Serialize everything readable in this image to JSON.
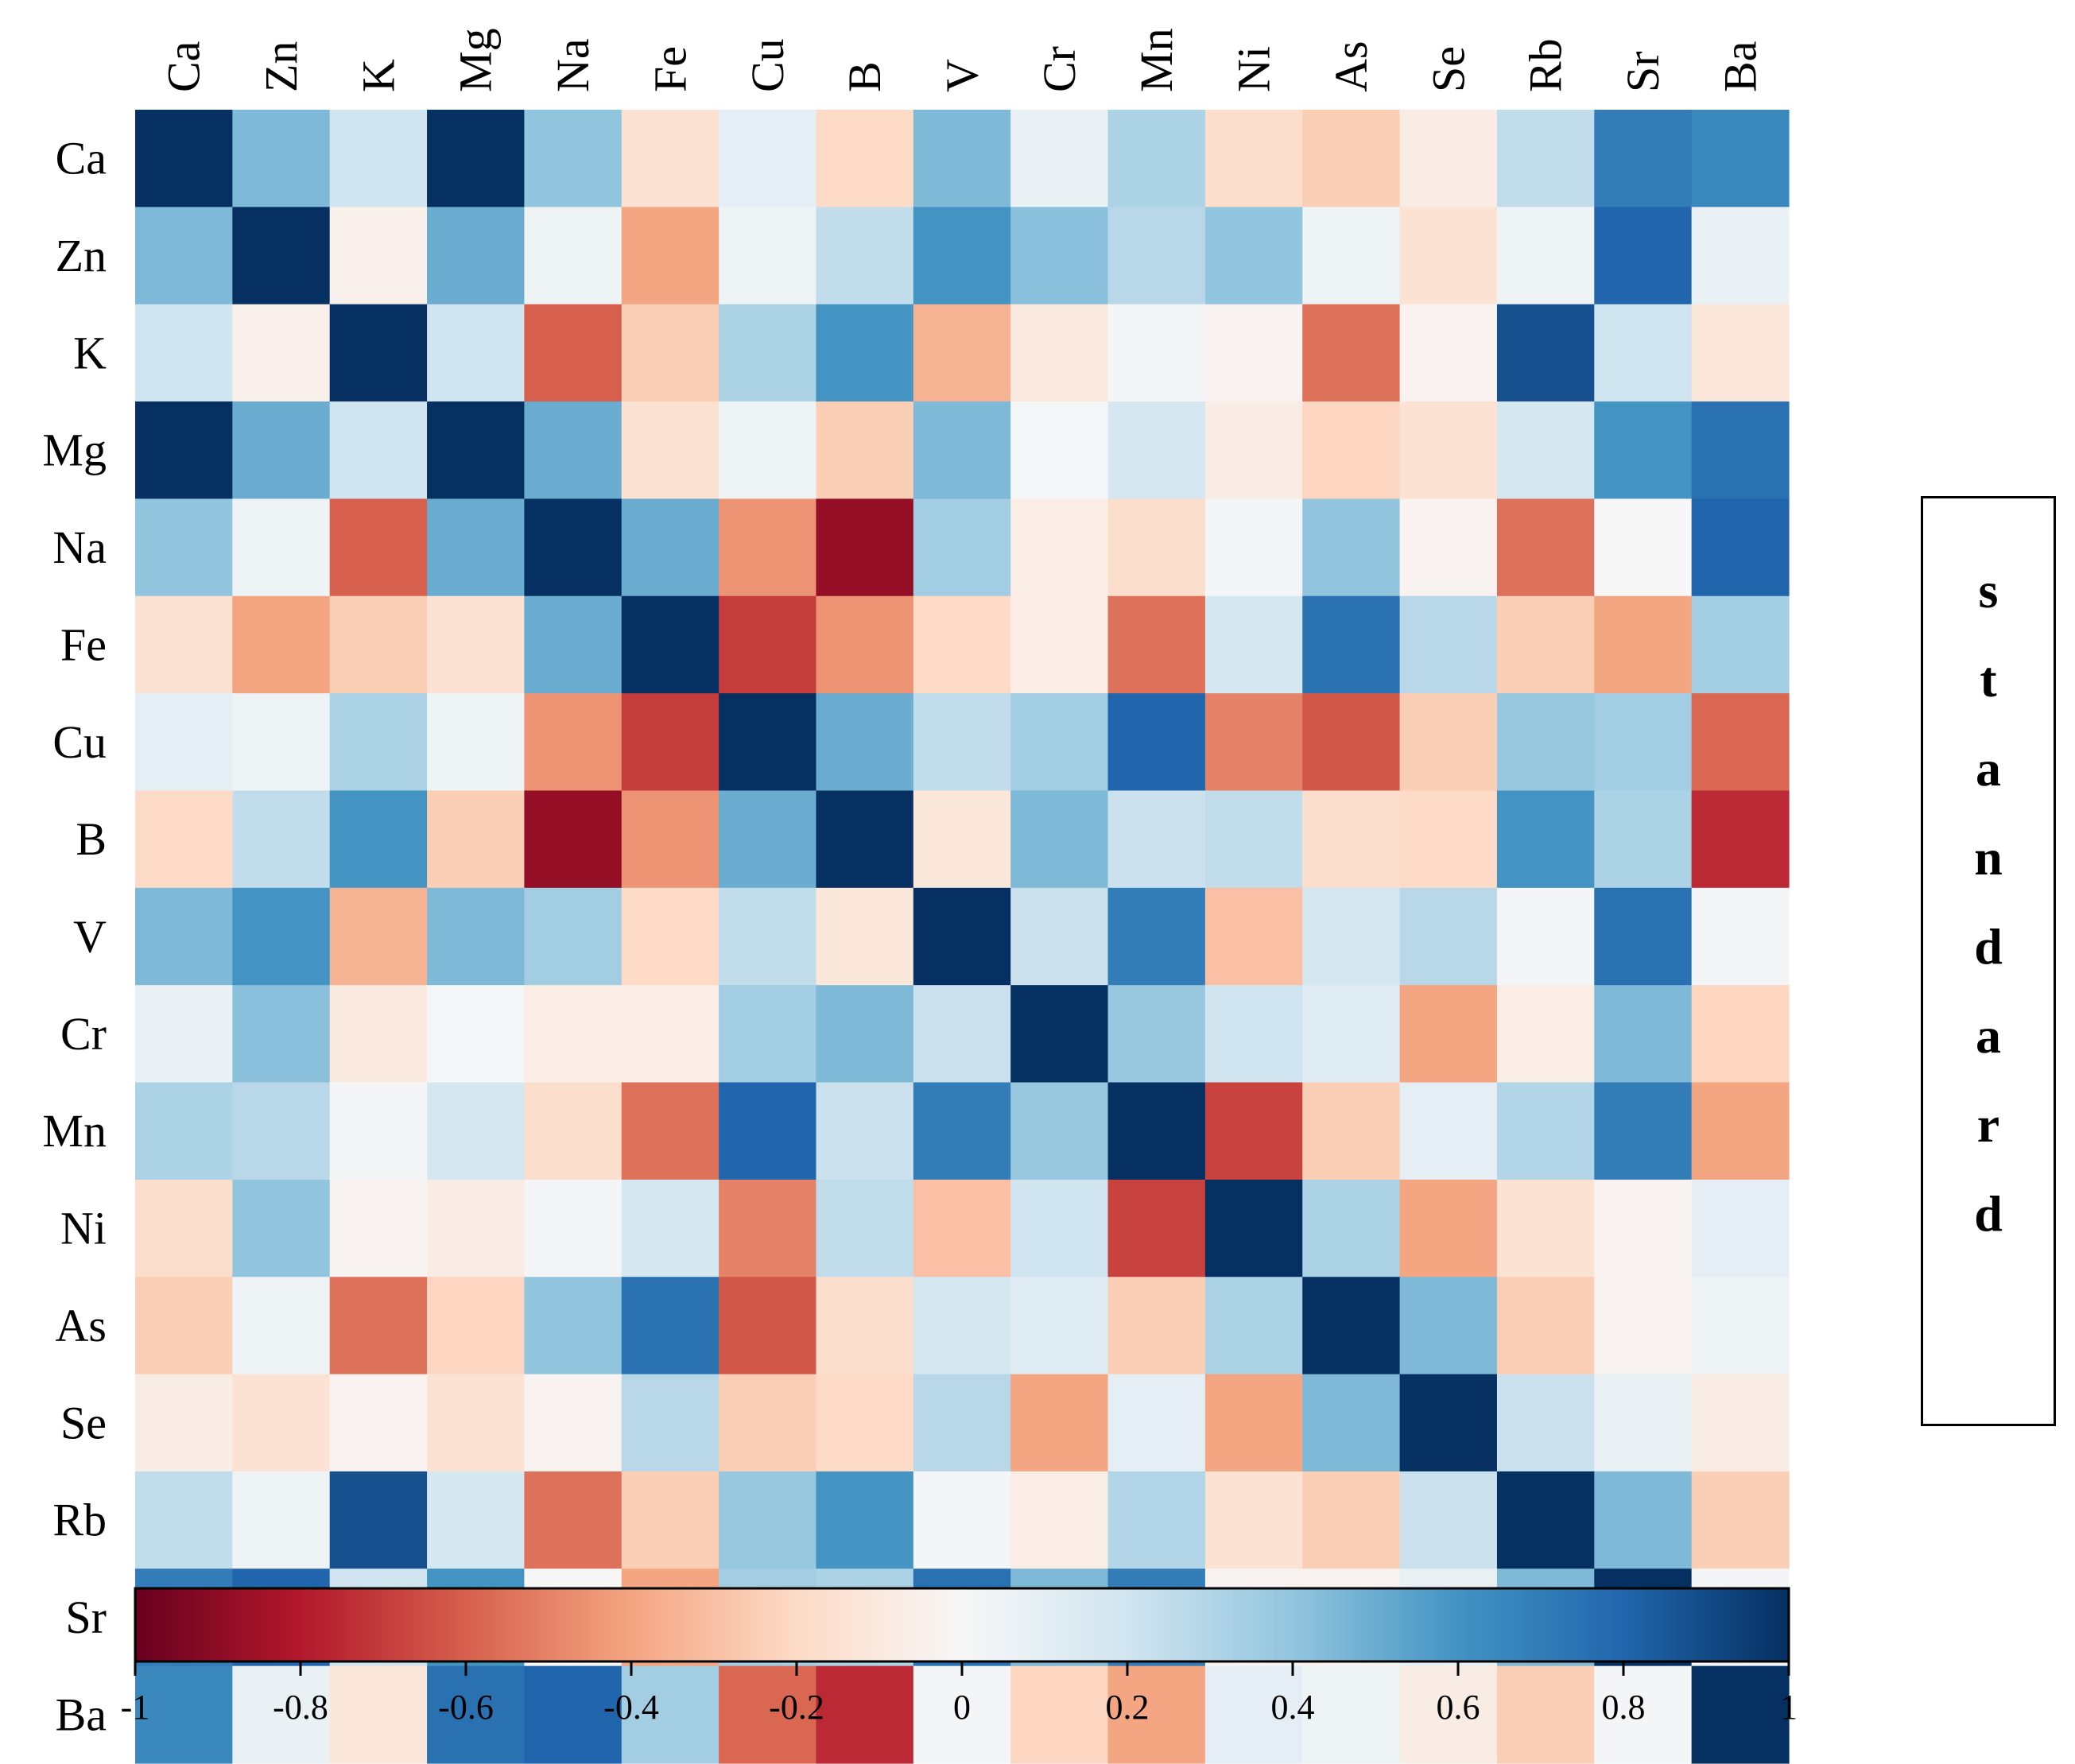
{
  "chart_data": {
    "type": "heatmap",
    "title": "",
    "row_labels": [
      "Ca",
      "Zn",
      "K",
      "Mg",
      "Na",
      "Fe",
      "Cu",
      "B",
      "V",
      "Cr",
      "Mn",
      "Ni",
      "As",
      "Se",
      "Rb",
      "Sr",
      "Ba"
    ],
    "col_labels": [
      "Ca",
      "Zn",
      "K",
      "Mg",
      "Na",
      "Fe",
      "Cu",
      "B",
      "V",
      "Cr",
      "Mn",
      "Ni",
      "As",
      "Se",
      "Rb",
      "Sr",
      "Ba"
    ],
    "values": [
      [
        1.0,
        0.45,
        0.2,
        1.0,
        0.4,
        -0.15,
        0.1,
        -0.2,
        0.45,
        0.07,
        0.32,
        -0.18,
        -0.25,
        -0.08,
        0.25,
        0.7,
        0.65
      ],
      [
        0.45,
        1.0,
        -0.05,
        0.5,
        0.05,
        -0.4,
        0.05,
        0.25,
        0.6,
        0.42,
        0.28,
        0.4,
        0.05,
        -0.15,
        0.05,
        0.8,
        0.07
      ],
      [
        0.2,
        -0.05,
        1.0,
        0.2,
        -0.6,
        -0.25,
        0.32,
        0.6,
        -0.35,
        -0.1,
        0.02,
        -0.03,
        -0.55,
        -0.03,
        0.88,
        0.2,
        -0.12
      ],
      [
        1.0,
        0.5,
        0.2,
        1.0,
        0.5,
        -0.15,
        0.05,
        -0.25,
        0.45,
        0.01,
        0.18,
        -0.08,
        -0.22,
        -0.15,
        0.18,
        0.6,
        0.75
      ],
      [
        0.4,
        0.05,
        -0.6,
        0.5,
        1.0,
        0.5,
        -0.45,
        -0.88,
        0.35,
        -0.07,
        -0.18,
        0.02,
        0.4,
        -0.03,
        -0.55,
        0.0,
        0.8
      ],
      [
        -0.15,
        -0.4,
        -0.25,
        -0.15,
        0.5,
        1.0,
        -0.7,
        -0.45,
        -0.2,
        -0.07,
        -0.55,
        0.18,
        0.75,
        0.28,
        -0.25,
        -0.4,
        0.35
      ],
      [
        0.1,
        0.05,
        0.32,
        0.05,
        -0.45,
        -0.7,
        1.0,
        0.5,
        0.25,
        0.35,
        0.8,
        -0.5,
        -0.62,
        -0.25,
        0.38,
        0.35,
        -0.58
      ],
      [
        -0.2,
        0.25,
        0.6,
        -0.25,
        -0.88,
        -0.45,
        0.5,
        1.0,
        -0.12,
        0.45,
        0.22,
        0.25,
        -0.18,
        -0.2,
        0.6,
        0.32,
        -0.75
      ],
      [
        0.45,
        0.6,
        -0.35,
        0.45,
        0.35,
        -0.2,
        0.25,
        -0.12,
        1.0,
        0.22,
        0.7,
        -0.3,
        0.18,
        0.28,
        0.02,
        0.75,
        0.02
      ],
      [
        0.07,
        0.42,
        -0.1,
        0.01,
        -0.07,
        -0.07,
        0.35,
        0.45,
        0.22,
        1.0,
        0.38,
        0.2,
        0.12,
        -0.4,
        -0.07,
        0.45,
        -0.22
      ],
      [
        0.32,
        0.28,
        0.02,
        0.18,
        -0.18,
        -0.55,
        0.8,
        0.22,
        0.7,
        0.38,
        1.0,
        -0.68,
        -0.25,
        0.1,
        0.3,
        0.7,
        -0.4
      ],
      [
        -0.18,
        0.4,
        -0.03,
        -0.08,
        0.02,
        0.18,
        -0.5,
        0.25,
        -0.3,
        0.2,
        -0.68,
        1.0,
        0.32,
        -0.4,
        -0.15,
        -0.03,
        0.1
      ],
      [
        -0.25,
        0.05,
        -0.55,
        -0.22,
        0.4,
        0.75,
        -0.62,
        -0.18,
        0.18,
        0.12,
        -0.25,
        0.32,
        1.0,
        0.45,
        -0.25,
        -0.03,
        0.05
      ],
      [
        -0.08,
        -0.15,
        -0.03,
        -0.15,
        -0.03,
        0.28,
        -0.25,
        -0.2,
        0.28,
        -0.4,
        0.1,
        -0.4,
        0.45,
        1.0,
        0.22,
        0.08,
        -0.08
      ],
      [
        0.25,
        0.05,
        0.88,
        0.18,
        -0.55,
        -0.25,
        0.38,
        0.6,
        0.02,
        -0.07,
        0.3,
        -0.15,
        -0.25,
        0.22,
        1.0,
        0.45,
        -0.25
      ],
      [
        0.7,
        0.8,
        0.2,
        0.6,
        0.0,
        -0.4,
        0.35,
        0.32,
        0.75,
        0.45,
        0.7,
        -0.03,
        -0.03,
        0.08,
        0.45,
        1.0,
        0.02
      ],
      [
        0.65,
        0.07,
        -0.12,
        0.75,
        0.8,
        0.35,
        -0.58,
        -0.75,
        0.02,
        -0.22,
        -0.4,
        0.1,
        0.05,
        -0.08,
        -0.25,
        0.02,
        1.0
      ]
    ],
    "colorbar": {
      "min": -1,
      "max": 1,
      "ticks": [
        "-1",
        "-0.8",
        "-0.6",
        "-0.4",
        "-0.2",
        "0",
        "0.2",
        "0.4",
        "0.6",
        "0.8",
        "1"
      ],
      "colormap": "RdBu",
      "stops": [
        "#67001f",
        "#b2182b",
        "#d6604d",
        "#f4a582",
        "#fddbc7",
        "#f7f7f7",
        "#d1e5f0",
        "#92c5de",
        "#4393c3",
        "#2166ac",
        "#053061"
      ]
    },
    "side_label": "standard"
  }
}
